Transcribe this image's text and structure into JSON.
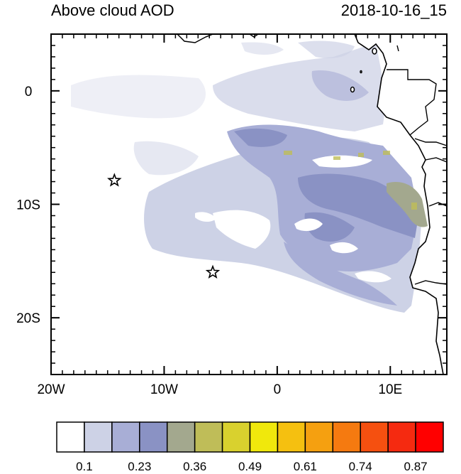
{
  "header": {
    "title": "Above cloud AOD",
    "timestamp": "2018-10-16_15"
  },
  "map": {
    "lon_range": [
      -20,
      15
    ],
    "lat_range": [
      -25,
      5
    ],
    "x_ticks": [
      {
        "value": -20,
        "label": "20W"
      },
      {
        "value": -10,
        "label": "10W"
      },
      {
        "value": 0,
        "label": "0"
      },
      {
        "value": 10,
        "label": "10E"
      }
    ],
    "y_ticks": [
      {
        "value": 0,
        "label": "0"
      },
      {
        "value": -10,
        "label": "10S"
      },
      {
        "value": -20,
        "label": "20S"
      }
    ],
    "markers": [
      {
        "name": "station-star-1",
        "lon": -14.4,
        "lat": -7.9
      },
      {
        "name": "station-star-2",
        "lon": -5.7,
        "lat": -16.0
      }
    ]
  },
  "colorbar": {
    "colors": [
      "#ffffff",
      "#cdd2e6",
      "#a8aed6",
      "#8a92c4",
      "#a3a88e",
      "#bfbd58",
      "#d9d12e",
      "#f0e80c",
      "#f5c010",
      "#f5a010",
      "#f57a10",
      "#f55010",
      "#f52a10",
      "#ff0000"
    ],
    "labels": [
      "0.1",
      "0.23",
      "0.36",
      "0.49",
      "0.61",
      "0.74",
      "0.87"
    ]
  }
}
